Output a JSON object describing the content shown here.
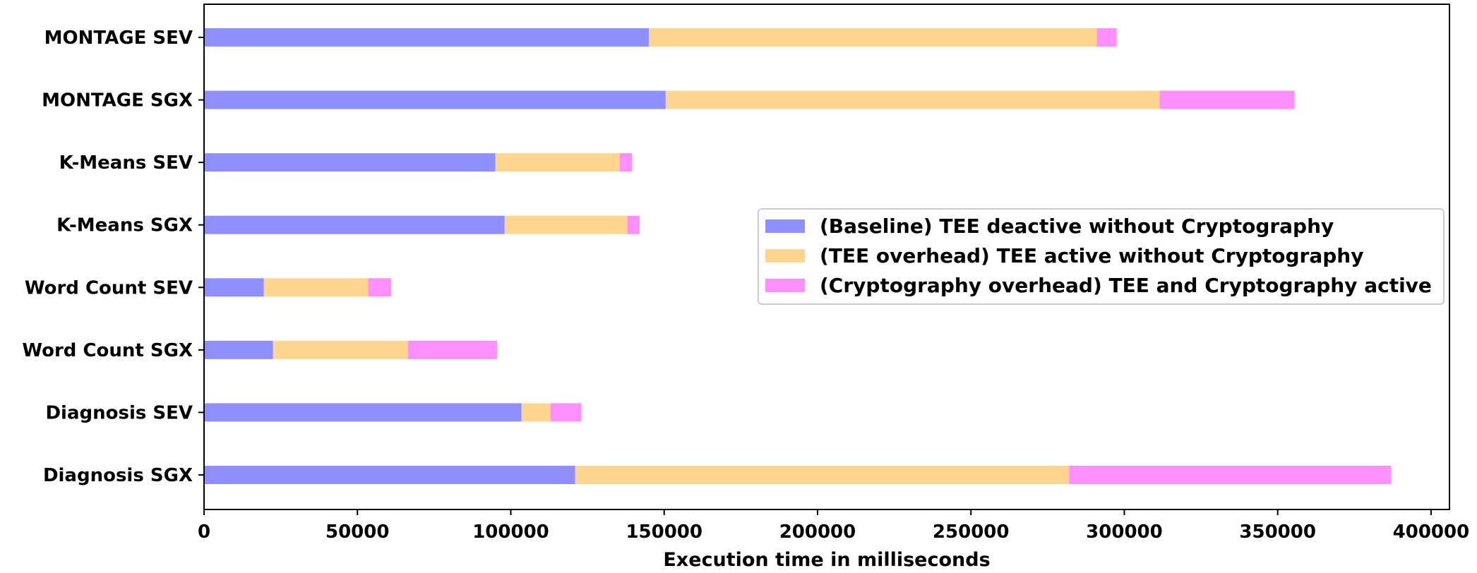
{
  "chart_data": {
    "type": "bar",
    "orientation": "horizontal",
    "stacked": true,
    "categories": [
      "MONTAGE SEV",
      "MONTAGE SGX",
      "K-Means SEV",
      "K-Means SGX",
      "Word Count SEV",
      "Word Count SGX",
      "Diagnosis SEV",
      "Diagnosis SGX"
    ],
    "series": [
      {
        "name": "(Baseline) TEE deactive without Cryptography",
        "color": "#8f8fff",
        "values": [
          145000,
          150500,
          95000,
          98000,
          19500,
          22500,
          103500,
          121000
        ]
      },
      {
        "name": "(TEE overhead) TEE active without Cryptography",
        "color": "#ffd58f",
        "values": [
          146000,
          161000,
          40500,
          40000,
          34000,
          44000,
          9500,
          161000
        ]
      },
      {
        "name": "(Cryptography overhead) TEE and Cryptography active",
        "color": "#ff8fff",
        "values": [
          6500,
          44000,
          4000,
          4000,
          7500,
          29000,
          10000,
          105000
        ]
      }
    ],
    "xlabel": "Execution time in milliseconds",
    "ylabel": "",
    "xlim": [
      0,
      406000
    ],
    "xticks": [
      0,
      50000,
      100000,
      150000,
      200000,
      250000,
      300000,
      350000,
      400000
    ],
    "grid": false,
    "legend_position": "right"
  }
}
